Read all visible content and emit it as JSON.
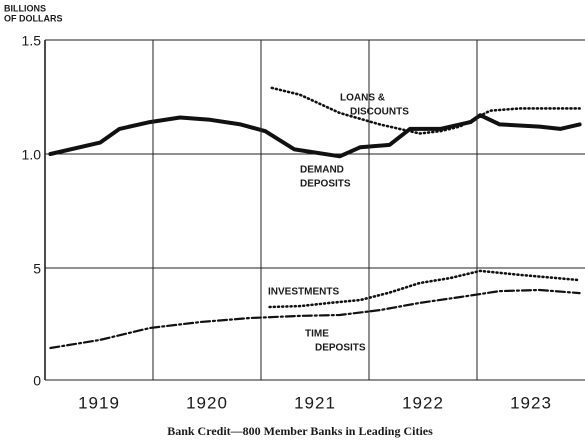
{
  "caption": "Bank Credit—800 Member Banks in Leading Cities",
  "ylabel_lines": [
    "BILLIONS",
    "OF DOLLARS"
  ],
  "chart_data": [
    {
      "type": "line",
      "xlim": [
        1919,
        1924
      ],
      "ylim": [
        0.5,
        1.5
      ],
      "yticks": [
        {
          "value": 1,
          "label": "1.0"
        },
        1.5
      ],
      "grid": true,
      "series": [
        {
          "label_lines": [
            "DEMAND",
            "DEPOSITS"
          ],
          "color": "#111111",
          "style": "solid",
          "x": [
            1919.05,
            1919.51,
            1919.69,
            1919.97,
            1920.25,
            1920.53,
            1920.81,
            1921.04,
            1921.31,
            1921.73,
            1921.92,
            1922.19,
            1922.38,
            1922.66,
            1922.94,
            1923.03,
            1923.21,
            1923.58,
            1923.77,
            1923.95
          ],
          "values": [
            1.0,
            1.05,
            1.11,
            1.14,
            1.16,
            1.15,
            1.13,
            1.1,
            1.02,
            0.99,
            1.03,
            1.04,
            1.11,
            1.11,
            1.14,
            1.17,
            1.13,
            1.12,
            1.11,
            1.13
          ]
        },
        {
          "label_lines": [
            "LOANS &",
            "DISCOUNTS"
          ],
          "color": "#111111",
          "style": "dotted",
          "x": [
            1921.1,
            1921.36,
            1921.73,
            1922.1,
            1922.47,
            1922.66,
            1922.84,
            1923.12,
            1923.4,
            1923.95
          ],
          "values": [
            1.29,
            1.26,
            1.18,
            1.13,
            1.09,
            1.1,
            1.12,
            1.19,
            1.2,
            1.2
          ]
        }
      ]
    },
    {
      "type": "line",
      "xlim": [
        1919,
        1924
      ],
      "ylim": [
        0,
        5
      ],
      "yticks": [
        0,
        5
      ],
      "xticks": [
        {
          "value": 1919.5,
          "label": "1919"
        },
        {
          "value": 1920.5,
          "label": "1920"
        },
        {
          "value": 1921.5,
          "label": "1921"
        },
        {
          "value": 1922.5,
          "label": "1922"
        },
        {
          "value": 1923.5,
          "label": "1923"
        }
      ],
      "x_grid": [
        1920,
        1921,
        1922,
        1923
      ],
      "grid": true,
      "series": [
        {
          "label_lines": [
            "INVESTMENTS"
          ],
          "color": "#111111",
          "style": "dotted",
          "x": [
            1921.08,
            1921.36,
            1921.64,
            1921.92,
            1922.19,
            1922.47,
            1922.75,
            1923.03,
            1923.4,
            1923.95
          ],
          "values": [
            3.26,
            3.3,
            3.44,
            3.57,
            3.9,
            4.33,
            4.55,
            4.87,
            4.69,
            4.46
          ]
        },
        {
          "label_lines": [
            "TIME",
            "DEPOSITS"
          ],
          "color": "#111111",
          "style": "dashdot",
          "x": [
            1919.05,
            1919.51,
            1919.97,
            1920.44,
            1920.9,
            1921.36,
            1921.73,
            1922.1,
            1922.47,
            1922.84,
            1923.21,
            1923.58,
            1923.95
          ],
          "values": [
            1.43,
            1.79,
            2.32,
            2.59,
            2.77,
            2.86,
            2.9,
            3.12,
            3.44,
            3.7,
            3.97,
            4.02,
            3.88
          ]
        }
      ]
    }
  ]
}
